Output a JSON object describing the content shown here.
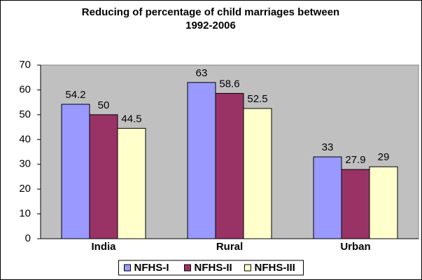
{
  "chart_data": {
    "type": "bar",
    "title": "Reducing of percentage of child marriages between 1992-2006",
    "categories": [
      "India",
      "Rural",
      "Urban"
    ],
    "series": [
      {
        "name": "NFHS-I",
        "color": "#9999ff",
        "values": [
          54.2,
          63,
          33
        ]
      },
      {
        "name": "NFHS-II",
        "color": "#993366",
        "values": [
          50,
          58.6,
          27.9
        ]
      },
      {
        "name": "NFHS-III",
        "color": "#ffffcc",
        "values": [
          44.5,
          52.5,
          29
        ]
      }
    ],
    "ylim": [
      0,
      70
    ],
    "yticks": [
      0,
      10,
      20,
      30,
      40,
      50,
      60,
      70
    ],
    "grid": false,
    "legend": "bottom"
  }
}
